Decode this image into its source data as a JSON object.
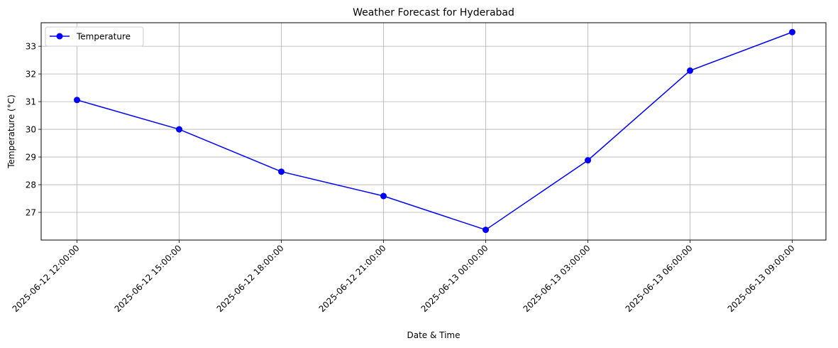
{
  "chart_data": {
    "type": "line",
    "title": "Weather Forecast for Hyderabad",
    "xlabel": "Date & Time",
    "ylabel": "Temperature (°C)",
    "categories": [
      "2025-06-12 12:00:00",
      "2025-06-12 15:00:00",
      "2025-06-12 18:00:00",
      "2025-06-12 21:00:00",
      "2025-06-13 00:00:00",
      "2025-06-13 03:00:00",
      "2025-06-13 06:00:00",
      "2025-06-13 09:00:00"
    ],
    "series": [
      {
        "name": "Temperature",
        "color": "#0000ff",
        "marker": "circle",
        "values": [
          31.06,
          30.0,
          28.47,
          27.59,
          26.37,
          28.88,
          32.12,
          33.51
        ]
      }
    ],
    "ylim": [
      26.0,
      33.85
    ],
    "yticks": [
      27,
      28,
      29,
      30,
      31,
      32,
      33
    ],
    "grid": true,
    "legend_position": "top-left",
    "xtick_rotation": 45
  }
}
